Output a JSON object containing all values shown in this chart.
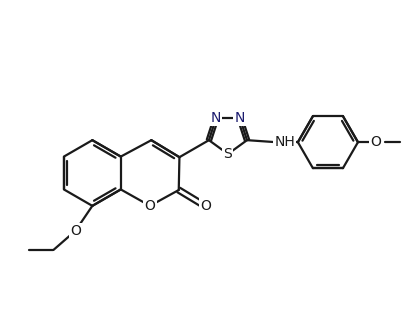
{
  "line_color": "#1a1a1a",
  "bg_color": "#ffffff",
  "bond_width": 1.6,
  "font_size_atom": 10,
  "figsize": [
    4.17,
    3.26
  ],
  "dpi": 100,
  "xlim": [
    0,
    10
  ],
  "ylim": [
    0,
    8
  ]
}
